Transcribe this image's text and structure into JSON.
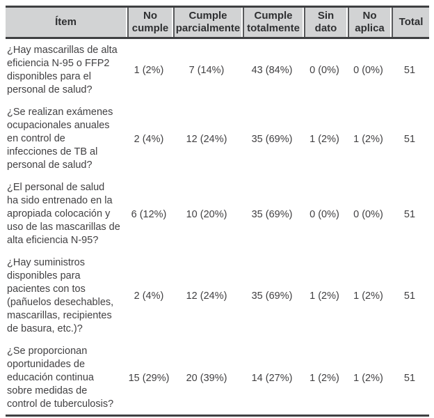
{
  "colors": {
    "header_background": "#d2d3d4",
    "rule_dark": "#3f4042",
    "header_separator": "#58595b",
    "body_text": "#414042"
  },
  "table": {
    "headers": {
      "item": "Ítem",
      "no_cumple": "No\ncumple",
      "cumple_parcialmente": "Cumple\nparcialmente",
      "cumple_totalmente": "Cumple\ntotalmente",
      "sin_dato": "Sin\ndato",
      "no_aplica": "No\naplica",
      "total": "Total"
    },
    "rows": [
      {
        "item": "¿Hay mascarillas de alta\neficiencia N-95 o FFP2\ndisponibles para el\npersonal de salud?",
        "no_cumple": "1 (2%)",
        "cumple_parcialmente": "7 (14%)",
        "cumple_totalmente": "43 (84%)",
        "sin_dato": "0 (0%)",
        "no_aplica": "0 (0%)",
        "total": "51"
      },
      {
        "item": "¿Se realizan exámenes\nocupacionales anuales\nen control de\ninfecciones de TB al\npersonal de salud?",
        "no_cumple": "2 (4%)",
        "cumple_parcialmente": "12 (24%)",
        "cumple_totalmente": "35 (69%)",
        "sin_dato": "1 (2%)",
        "no_aplica": "1 (2%)",
        "total": "51"
      },
      {
        "item": "¿El personal de salud\nha sido entrenado en la\napropiada colocación y\nuso de las mascarillas de\nalta eficiencia N-95?",
        "no_cumple": "6 (12%)",
        "cumple_parcialmente": "10 (20%)",
        "cumple_totalmente": "35 (69%)",
        "sin_dato": "0 (0%)",
        "no_aplica": "0 (0%)",
        "total": "51"
      },
      {
        "item": "¿Hay suministros\ndisponibles para\npacientes con tos\n(pañuelos desechables,\nmascarillas, recipientes\nde basura, etc.)?",
        "no_cumple": "2 (4%)",
        "cumple_parcialmente": "12 (24%)",
        "cumple_totalmente": "35 (69%)",
        "sin_dato": "1 (2%)",
        "no_aplica": "1 (2%)",
        "total": "51"
      },
      {
        "item": "¿Se proporcionan\noportunidades de\neducación continua\nsobre medidas de\ncontrol de tuberculosis?",
        "no_cumple": "15 (29%)",
        "cumple_parcialmente": "20 (39%)",
        "cumple_totalmente": "14 (27%)",
        "sin_dato": "1 (2%)",
        "no_aplica": "1 (2%)",
        "total": "51"
      }
    ]
  }
}
